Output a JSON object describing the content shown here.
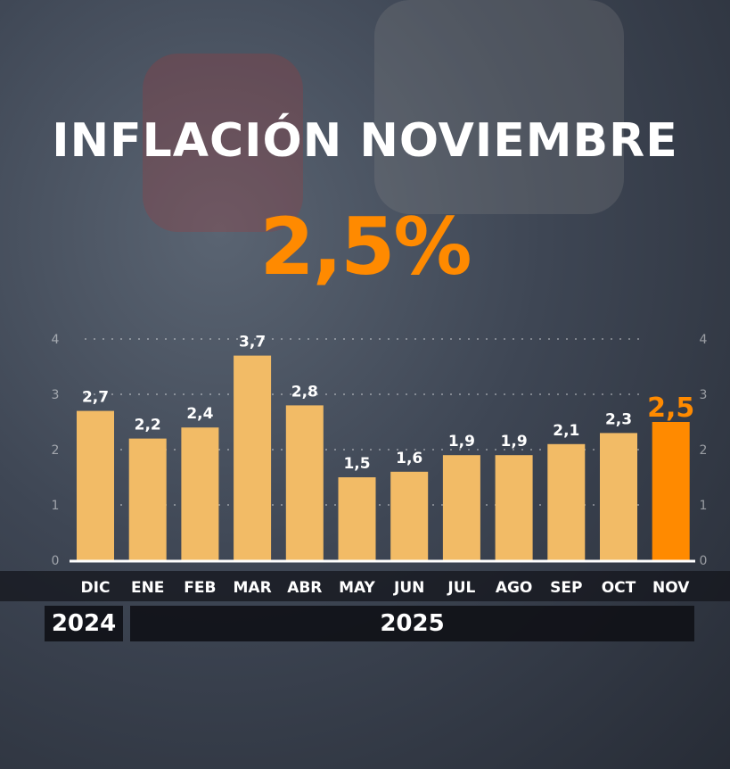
{
  "title": "INFLACIÓN NOVIEMBRE",
  "headline_value": "2,5%",
  "colors": {
    "bar": "#f2bb66",
    "highlight": "#ff8a00",
    "text": "#ffffff"
  },
  "years": [
    "2024",
    "2025"
  ],
  "chart_data": {
    "type": "bar",
    "title": "INFLACIÓN NOVIEMBRE",
    "categories": [
      "DIC",
      "ENE",
      "FEB",
      "MAR",
      "ABR",
      "MAY",
      "JUN",
      "JUL",
      "AGO",
      "SEP",
      "OCT",
      "NOV"
    ],
    "values": [
      2.7,
      2.2,
      2.4,
      3.7,
      2.8,
      1.5,
      1.6,
      1.9,
      1.9,
      2.1,
      2.3,
      2.5
    ],
    "labels": [
      "2,7",
      "2,2",
      "2,4",
      "3,7",
      "2,8",
      "1,5",
      "1,6",
      "1,9",
      "1,9",
      "2,1",
      "2,3",
      "2,5"
    ],
    "highlight_index": 11,
    "ylim": [
      0,
      4
    ],
    "yticks": [
      0,
      1,
      2,
      3,
      4
    ],
    "grid": true,
    "xlabel": "",
    "ylabel": ""
  }
}
